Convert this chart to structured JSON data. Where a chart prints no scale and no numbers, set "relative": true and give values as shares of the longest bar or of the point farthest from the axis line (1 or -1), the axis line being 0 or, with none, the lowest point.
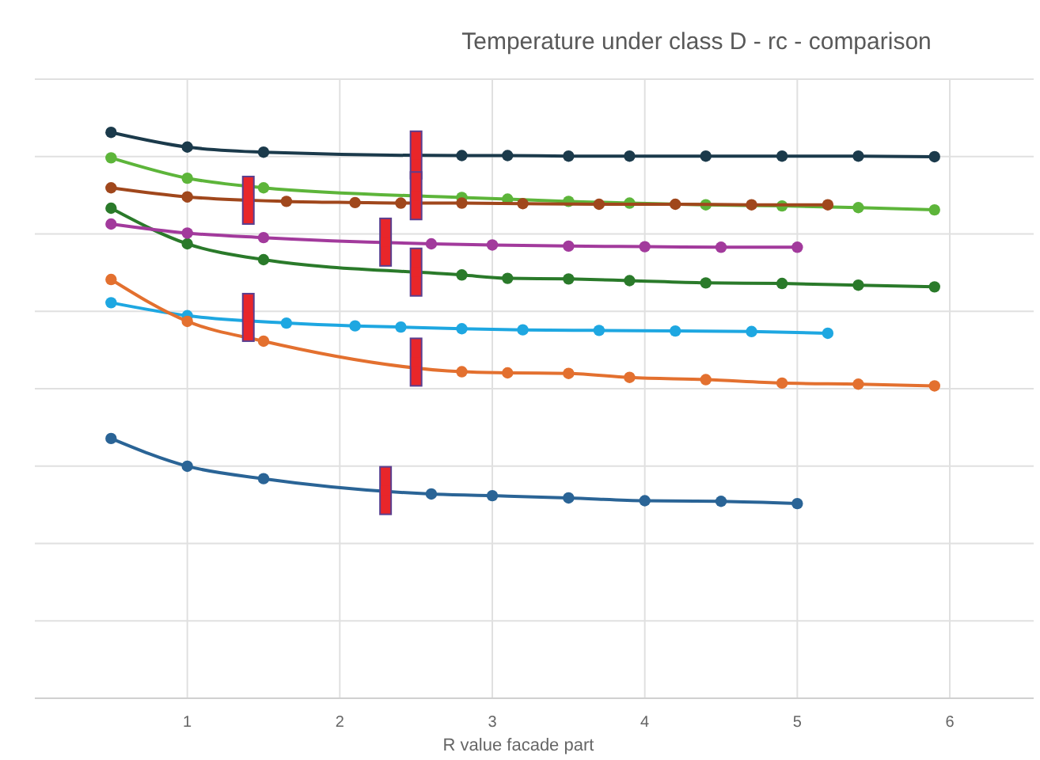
{
  "chart_data": {
    "type": "line",
    "title": "Temperature under class D - rc - comparison",
    "xlabel": "R value facade part",
    "relative": true,
    "xlim": [
      0,
      6.55
    ],
    "xticks": [
      1,
      2,
      3,
      4,
      5,
      6
    ],
    "grid": true,
    "legend": false,
    "marker": "circle",
    "line_style": "solid",
    "series": [
      {
        "color": "#1b3a4b",
        "x": [
          0.5,
          1,
          1.5,
          2.8,
          3.1,
          3.5,
          3.9,
          4.4,
          4.9,
          5.4,
          5.9
        ],
        "values": [
          1.0,
          0.974,
          0.965,
          0.959,
          0.959,
          0.958,
          0.958,
          0.958,
          0.958,
          0.958,
          0.957
        ]
      },
      {
        "color": "#5db53a",
        "x": [
          0.5,
          1,
          1.5,
          2.8,
          3.1,
          3.5,
          3.9,
          4.4,
          4.9,
          5.4,
          5.9
        ],
        "values": [
          0.955,
          0.919,
          0.902,
          0.885,
          0.882,
          0.878,
          0.875,
          0.872,
          0.87,
          0.867,
          0.863
        ]
      },
      {
        "color": "#a0471c",
        "x": [
          0.5,
          1,
          1.65,
          2.1,
          2.4,
          2.8,
          3.2,
          3.7,
          4.2,
          4.7,
          5.2
        ],
        "values": [
          0.902,
          0.886,
          0.878,
          0.876,
          0.875,
          0.875,
          0.874,
          0.873,
          0.873,
          0.872,
          0.872
        ]
      },
      {
        "color": "#2a7a2a",
        "x": [
          0.5,
          1,
          1.5,
          2.8,
          3.1,
          3.5,
          3.9,
          4.4,
          4.9,
          5.4,
          5.9
        ],
        "values": [
          0.866,
          0.803,
          0.775,
          0.748,
          0.742,
          0.741,
          0.738,
          0.734,
          0.733,
          0.73,
          0.727
        ]
      },
      {
        "color": "#a23a9c",
        "x": [
          0.5,
          1,
          1.5,
          2.6,
          3,
          3.5,
          4,
          4.5,
          5
        ],
        "values": [
          0.838,
          0.822,
          0.814,
          0.803,
          0.801,
          0.799,
          0.798,
          0.797,
          0.797
        ]
      },
      {
        "color": "#1ea7e1",
        "x": [
          0.5,
          1,
          1.65,
          2.1,
          2.4,
          2.8,
          3.2,
          3.7,
          4.2,
          4.7,
          5.2
        ],
        "values": [
          0.699,
          0.676,
          0.663,
          0.658,
          0.656,
          0.653,
          0.651,
          0.65,
          0.649,
          0.648,
          0.645
        ]
      },
      {
        "color": "#e3702f",
        "x": [
          0.5,
          1,
          1.5,
          2.8,
          3.1,
          3.5,
          3.9,
          4.4,
          4.9,
          5.4,
          5.9
        ],
        "values": [
          0.74,
          0.666,
          0.631,
          0.577,
          0.575,
          0.574,
          0.567,
          0.563,
          0.557,
          0.555,
          0.552
        ]
      },
      {
        "color": "#2a6496",
        "x": [
          0.5,
          1,
          1.5,
          2.6,
          3,
          3.5,
          4,
          4.5,
          5
        ],
        "values": [
          0.459,
          0.41,
          0.388,
          0.361,
          0.358,
          0.354,
          0.349,
          0.348,
          0.344
        ]
      },
      {
        "type": "scatter",
        "marker": "square",
        "color": "#e8262a",
        "x": [
          2.5,
          2.5,
          1.4,
          2.5,
          2.3,
          1.4,
          2.5,
          2.3
        ],
        "values": [
          0.96,
          0.888,
          0.88,
          0.753,
          0.806,
          0.673,
          0.594,
          0.367
        ]
      }
    ]
  }
}
